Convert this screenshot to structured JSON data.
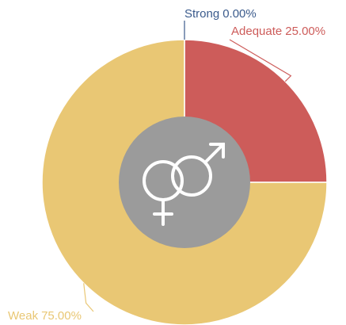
{
  "chart_data": {
    "type": "pie",
    "categories": [
      "Strong",
      "Adequate",
      "Weak"
    ],
    "values": [
      0,
      25,
      75
    ],
    "value_labels": [
      "0.00%",
      "25.00%",
      "75.00%"
    ],
    "colors": [
      "#3b5b8c",
      "#cd5c5a",
      "#e9c774"
    ]
  }
}
